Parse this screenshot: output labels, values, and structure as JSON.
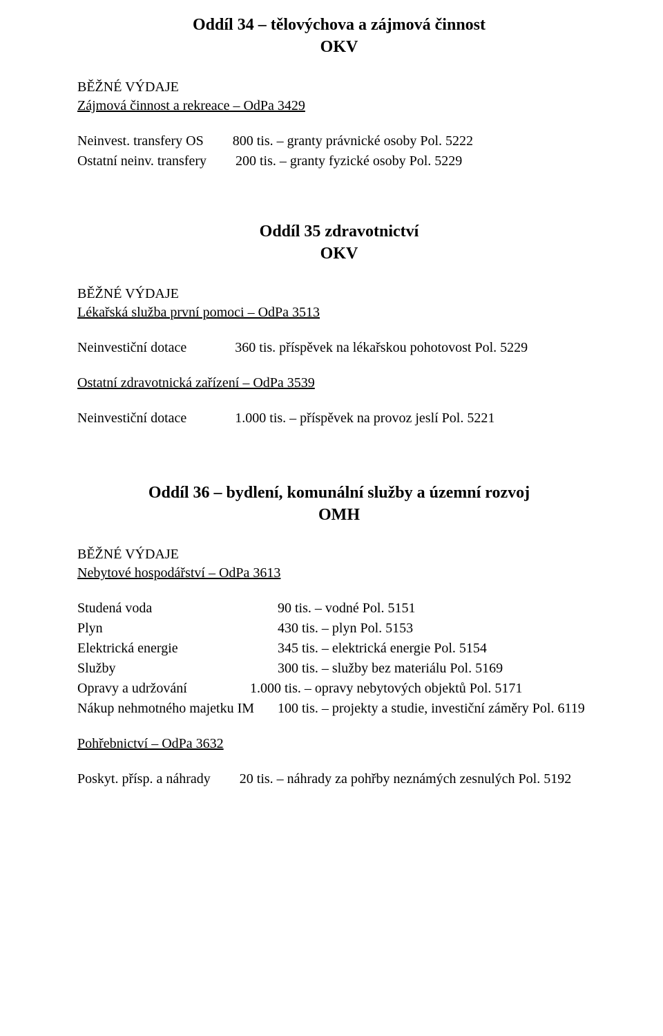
{
  "section34": {
    "title": "Oddíl 34 – tělovýchova a zájmová činnost",
    "sub": "OKV",
    "heading_caps": "BĚŽNÉ VÝDAJE",
    "subheading": "Zájmová činnost a rekreace – OdPa 3429",
    "rows": [
      {
        "label": "Neinvest. transfery OS",
        "value": "800 tis. – granty právnické osoby Pol. 5222"
      },
      {
        "label": "Ostatní neinv. transfery",
        "value": "200 tis. – granty fyzické osoby Pol. 5229"
      }
    ]
  },
  "section35": {
    "title": "Oddíl 35 zdravotnictví",
    "sub": "OKV",
    "heading_caps": "BĚŽNÉ VÝDAJE",
    "sub1": "Lékařská služba první pomoci – OdPa 3513",
    "row1": {
      "label": "Neinvestiční dotace",
      "value": "360 tis. příspěvek na lékařskou pohotovost Pol. 5229"
    },
    "sub2": "Ostatní zdravotnická zařízení – OdPa 3539",
    "row2": {
      "label": "Neinvestiční dotace",
      "value": "1.000 tis. – příspěvek na provoz jeslí Pol. 5221"
    }
  },
  "section36": {
    "title": "Oddíl 36 – bydlení, komunální služby a územní rozvoj",
    "sub": "OMH",
    "heading_caps": "BĚŽNÉ VÝDAJE",
    "sub1": "Nebytové hospodářství – OdPa 3613",
    "rows": [
      {
        "label": "Studená voda",
        "value": "90 tis. – vodné Pol. 5151"
      },
      {
        "label": "Plyn",
        "value": "430 tis. – plyn Pol. 5153"
      },
      {
        "label": "Elektrická energie",
        "value": "345 tis. – elektrická energie Pol. 5154"
      },
      {
        "label": "Služby",
        "value": "300 tis. – služby bez materiálu Pol. 5169"
      },
      {
        "label": "Opravy a udržování",
        "value": "1.000 tis. – opravy nebytových objektů Pol. 5171"
      },
      {
        "label": "Nákup nehmotného majetku IM",
        "value": "100 tis. – projekty a studie, investiční záměry Pol. 6119"
      }
    ],
    "sub2": "Pohřebnictví – OdPa 3632",
    "row_final": {
      "label": "Poskyt. přísp. a náhrady",
      "value": "20 tis. – náhrady za pohřby neznámých zesnulých Pol. 5192"
    }
  }
}
